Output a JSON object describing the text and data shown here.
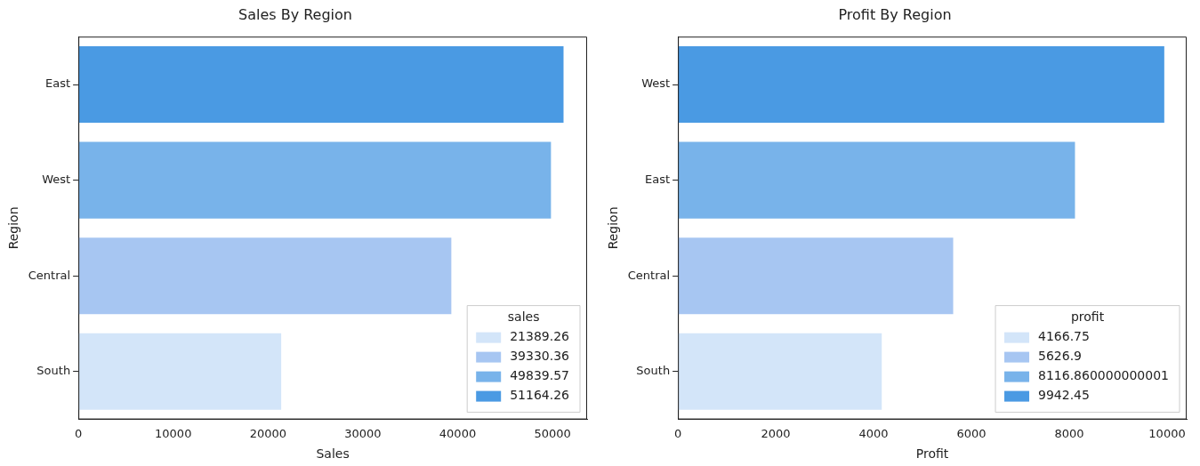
{
  "chart_data": [
    {
      "type": "bar",
      "orientation": "horizontal",
      "stacked": true,
      "title": "Sales By Region",
      "xlabel": "Sales",
      "ylabel": "Region",
      "legend_title": "sales",
      "legend": "bottom right",
      "grid": false,
      "categories": [
        "East",
        "West",
        "Central",
        "South"
      ],
      "xlim": [
        0,
        53650
      ],
      "xticks": [
        0,
        10000,
        20000,
        30000,
        40000,
        50000
      ],
      "series": [
        {
          "name": "21389.26",
          "color": "#d3e5f9",
          "values": [
            null,
            null,
            null,
            21389.26
          ]
        },
        {
          "name": "39330.36",
          "color": "#a7c6f2",
          "values": [
            null,
            null,
            39330.36,
            null
          ]
        },
        {
          "name": "49839.57",
          "color": "#78b3ea",
          "values": [
            null,
            49839.57,
            null,
            null
          ]
        },
        {
          "name": "51164.26",
          "color": "#4a9ae3",
          "values": [
            51164.26,
            null,
            null,
            null
          ]
        }
      ]
    },
    {
      "type": "bar",
      "orientation": "horizontal",
      "stacked": true,
      "title": "Profit By Region",
      "xlabel": "Profit",
      "ylabel": "Region",
      "legend_title": "profit",
      "legend": "bottom right",
      "grid": false,
      "categories": [
        "West",
        "East",
        "Central",
        "South"
      ],
      "xlim": [
        0,
        10400
      ],
      "xticks": [
        0,
        2000,
        4000,
        6000,
        8000,
        10000
      ],
      "series": [
        {
          "name": "4166.75",
          "color": "#d3e5f9",
          "values": [
            null,
            null,
            null,
            4166.75
          ]
        },
        {
          "name": "5626.9",
          "color": "#a7c6f2",
          "values": [
            null,
            null,
            5626.9,
            null
          ]
        },
        {
          "name": "8116.860000000001",
          "color": "#78b3ea",
          "values": [
            null,
            8116.860000000001,
            null,
            null
          ]
        },
        {
          "name": "9942.45",
          "color": "#4a9ae3",
          "values": [
            9942.45,
            null,
            null,
            null
          ]
        }
      ]
    }
  ]
}
